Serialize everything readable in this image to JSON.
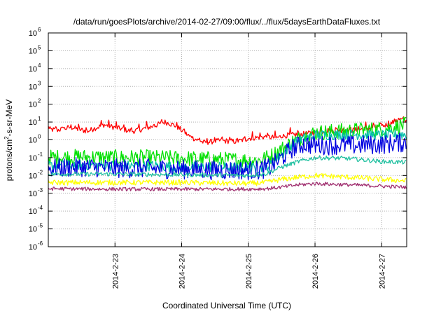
{
  "chart_data": {
    "type": "line",
    "title": "/data/run/goesPlots/archive/2014-02-27/09:00/flux/../flux/5daysEarthDataFluxes.txt",
    "xlabel": "Coordinated Universal Time (UTC)",
    "ylabel": "protons/cm²-s-sr-MeV",
    "ylabel_parts": {
      "pre": "protons/cm",
      "sup": "2",
      "post": "-s-sr-MeV"
    },
    "yscale": "log",
    "ylim": [
      1e-06,
      1000000.0
    ],
    "y_ticks": [
      {
        "base": "10",
        "exp": "-6",
        "value": 1e-06
      },
      {
        "base": "10",
        "exp": "-5",
        "value": 1e-05
      },
      {
        "base": "10",
        "exp": "-4",
        "value": 0.0001
      },
      {
        "base": "10",
        "exp": "-3",
        "value": 0.001
      },
      {
        "base": "10",
        "exp": "-2",
        "value": 0.01
      },
      {
        "base": "10",
        "exp": "-1",
        "value": 0.1
      },
      {
        "base": "10",
        "exp": "0",
        "value": 1
      },
      {
        "base": "10",
        "exp": "1",
        "value": 10
      },
      {
        "base": "10",
        "exp": "2",
        "value": 100
      },
      {
        "base": "10",
        "exp": "3",
        "value": 1000
      },
      {
        "base": "10",
        "exp": "4",
        "value": 10000
      },
      {
        "base": "10",
        "exp": "5",
        "value": 100000
      },
      {
        "base": "10",
        "exp": "6",
        "value": 1000000
      }
    ],
    "xlim": [
      "2014-02-22T00:00",
      "2014-02-27T09:00"
    ],
    "x_ticks": [
      {
        "label": "2014-2-23",
        "value": "2014-02-23T00:00"
      },
      {
        "label": "2014-2-24",
        "value": "2014-02-24T00:00"
      },
      {
        "label": "2014-2-25",
        "value": "2014-02-25T00:00"
      },
      {
        "label": "2014-2-26",
        "value": "2014-02-26T00:00"
      },
      {
        "label": "2014-2-27",
        "value": "2014-02-27T00:00"
      }
    ],
    "grid": true,
    "series": [
      {
        "color": "#ff0000",
        "noise": 0.15,
        "spike_every": 9,
        "spike_amp": 0.35,
        "x": [
          "2014-02-22T00:00",
          "2014-02-22T03:00",
          "2014-02-22T08:00",
          "2014-02-22T14:00",
          "2014-02-22T20:00",
          "2014-02-23T00:00",
          "2014-02-23T06:00",
          "2014-02-23T10:00",
          "2014-02-23T14:00",
          "2014-02-23T18:00",
          "2014-02-23T22:00",
          "2014-02-24T03:00",
          "2014-02-24T08:00",
          "2014-02-24T14:00",
          "2014-02-24T20:00",
          "2014-02-25T00:00",
          "2014-02-25T06:00",
          "2014-02-25T10:00",
          "2014-02-25T14:00",
          "2014-02-25T18:00",
          "2014-02-25T22:00",
          "2014-02-26T03:00",
          "2014-02-26T08:00",
          "2014-02-26T14:00",
          "2014-02-26T20:00",
          "2014-02-27T00:00",
          "2014-02-27T03:00",
          "2014-02-27T06:00",
          "2014-02-27T09:00"
        ],
        "y": [
          4,
          3.5,
          5,
          3,
          7,
          5,
          3,
          4,
          6,
          10,
          6,
          1.5,
          0.7,
          0.9,
          0.8,
          1.2,
          1.5,
          1.3,
          1.8,
          2,
          2.3,
          3,
          3.5,
          3.5,
          4.5,
          6,
          8,
          14,
          12
        ]
      },
      {
        "color": "#00e000",
        "noise": 0.45,
        "spike_every": 0,
        "spike_amp": 0,
        "x": [
          "2014-02-22T00:00",
          "2014-02-22T12:00",
          "2014-02-23T00:00",
          "2014-02-23T12:00",
          "2014-02-24T00:00",
          "2014-02-24T12:00",
          "2014-02-25T00:00",
          "2014-02-25T04:00",
          "2014-02-25T08:00",
          "2014-02-25T12:00",
          "2014-02-25T16:00",
          "2014-02-25T20:00",
          "2014-02-26T00:00",
          "2014-02-26T08:00",
          "2014-02-26T16:00",
          "2014-02-27T00:00",
          "2014-02-27T06:00",
          "2014-02-27T09:00"
        ],
        "y": [
          0.1,
          0.11,
          0.1,
          0.1,
          0.09,
          0.08,
          0.07,
          0.07,
          0.12,
          0.3,
          0.8,
          1.5,
          2.5,
          3,
          3.5,
          4,
          6,
          7
        ]
      },
      {
        "color": "#00bfa8",
        "noise": 0.3,
        "spike_every": 0,
        "spike_amp": 0,
        "x": [
          "2014-02-22T00:00",
          "2014-02-22T12:00",
          "2014-02-23T00:00",
          "2014-02-23T12:00",
          "2014-02-24T00:00",
          "2014-02-24T12:00",
          "2014-02-25T00:00",
          "2014-02-25T04:00",
          "2014-02-25T08:00",
          "2014-02-25T12:00",
          "2014-02-25T16:00",
          "2014-02-25T20:00",
          "2014-02-26T00:00",
          "2014-02-26T08:00",
          "2014-02-26T16:00",
          "2014-02-27T00:00",
          "2014-02-27T06:00",
          "2014-02-27T09:00"
        ],
        "y": [
          0.035,
          0.04,
          0.035,
          0.035,
          0.03,
          0.03,
          0.025,
          0.025,
          0.04,
          0.15,
          0.6,
          1.2,
          1.8,
          2,
          2,
          1.8,
          2,
          2
        ]
      },
      {
        "color": "#0000e0",
        "noise": 0.55,
        "spike_every": 0,
        "spike_amp": 0,
        "x": [
          "2014-02-22T00:00",
          "2014-02-22T12:00",
          "2014-02-23T00:00",
          "2014-02-23T12:00",
          "2014-02-24T00:00",
          "2014-02-24T12:00",
          "2014-02-25T00:00",
          "2014-02-25T04:00",
          "2014-02-25T08:00",
          "2014-02-25T12:00",
          "2014-02-25T16:00",
          "2014-02-25T20:00",
          "2014-02-26T00:00",
          "2014-02-26T08:00",
          "2014-02-26T16:00",
          "2014-02-27T00:00",
          "2014-02-27T06:00",
          "2014-02-27T09:00"
        ],
        "y": [
          0.025,
          0.03,
          0.025,
          0.025,
          0.022,
          0.02,
          0.02,
          0.02,
          0.03,
          0.1,
          0.35,
          0.6,
          0.5,
          0.5,
          0.5,
          0.55,
          0.7,
          0.7
        ]
      },
      {
        "color": "#20c0a0",
        "noise": 0.12,
        "spike_every": 0,
        "spike_amp": 0,
        "x": [
          "2014-02-22T00:00",
          "2014-02-23T00:00",
          "2014-02-24T00:00",
          "2014-02-25T00:00",
          "2014-02-25T06:00",
          "2014-02-25T12:00",
          "2014-02-25T18:00",
          "2014-02-26T00:00",
          "2014-02-26T12:00",
          "2014-02-27T00:00",
          "2014-02-27T09:00"
        ],
        "y": [
          0.012,
          0.012,
          0.011,
          0.01,
          0.012,
          0.03,
          0.06,
          0.1,
          0.09,
          0.06,
          0.055
        ]
      },
      {
        "color": "#ffff00",
        "noise": 0.15,
        "spike_every": 0,
        "spike_amp": 0,
        "x": [
          "2014-02-22T00:00",
          "2014-02-23T00:00",
          "2014-02-24T00:00",
          "2014-02-25T00:00",
          "2014-02-25T06:00",
          "2014-02-25T12:00",
          "2014-02-25T18:00",
          "2014-02-26T00:00",
          "2014-02-26T12:00",
          "2014-02-27T00:00",
          "2014-02-27T09:00"
        ],
        "y": [
          0.004,
          0.004,
          0.004,
          0.0035,
          0.004,
          0.006,
          0.008,
          0.01,
          0.008,
          0.006,
          0.005
        ]
      },
      {
        "color": "#a03070",
        "noise": 0.1,
        "spike_every": 0,
        "spike_amp": 0,
        "x": [
          "2014-02-22T00:00",
          "2014-02-23T00:00",
          "2014-02-24T00:00",
          "2014-02-25T00:00",
          "2014-02-25T06:00",
          "2014-02-25T12:00",
          "2014-02-25T18:00",
          "2014-02-26T00:00",
          "2014-02-26T12:00",
          "2014-02-27T00:00",
          "2014-02-27T09:00"
        ],
        "y": [
          0.0018,
          0.0017,
          0.0017,
          0.0017,
          0.0018,
          0.0022,
          0.003,
          0.0035,
          0.003,
          0.0025,
          0.0022
        ]
      }
    ]
  }
}
